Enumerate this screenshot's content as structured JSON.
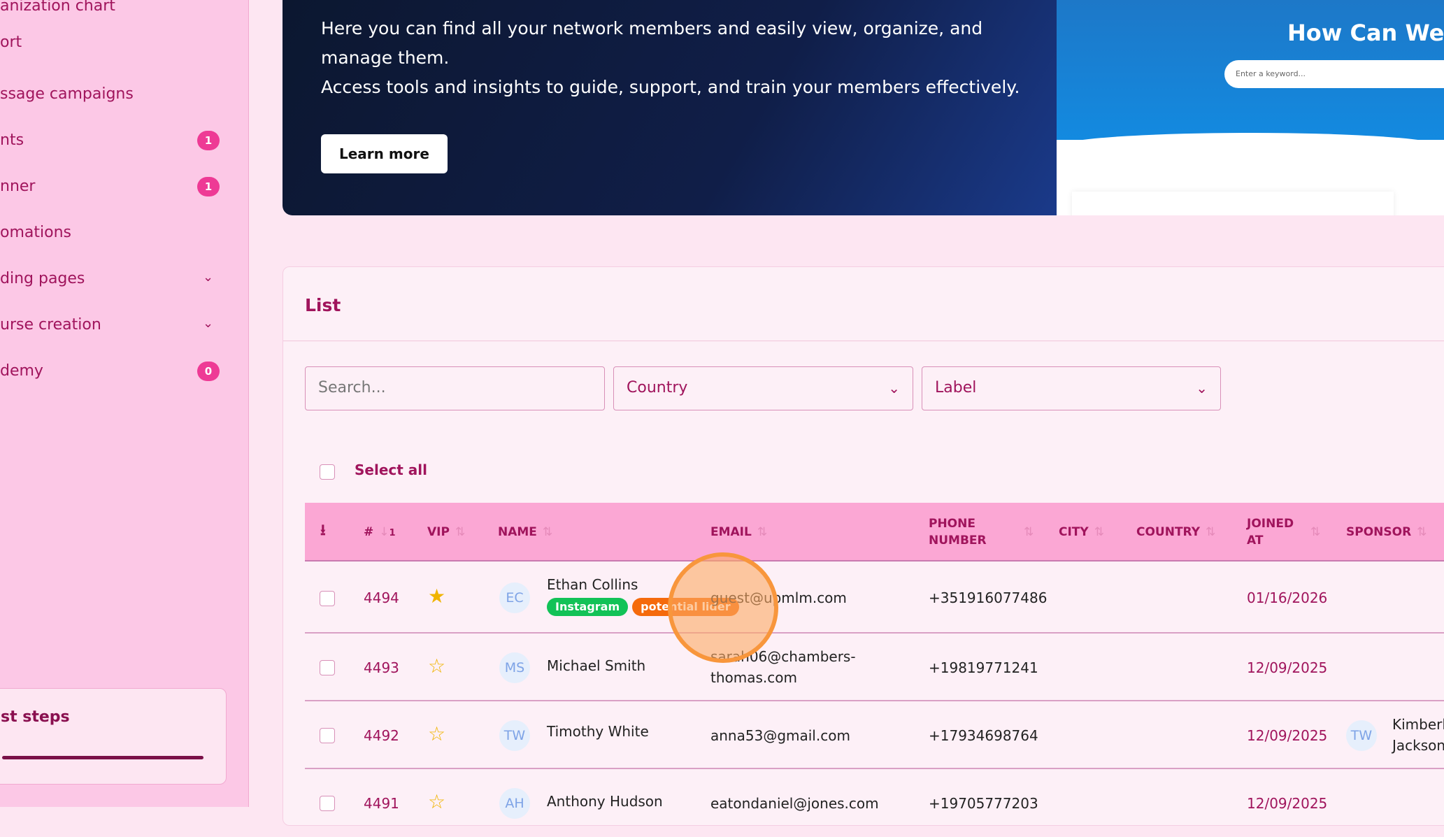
{
  "sidebar": {
    "items": [
      {
        "label": "anization chart"
      },
      {
        "label": "ort"
      },
      {
        "label": "ssage campaigns"
      },
      {
        "label": "nts",
        "badge": "1"
      },
      {
        "label": "nner",
        "badge": "1"
      },
      {
        "label": "omations"
      },
      {
        "label": "ding pages",
        "expandable": true
      },
      {
        "label": "urse creation",
        "expandable": true
      },
      {
        "label": "demy",
        "badge": "0"
      }
    ],
    "steps_title": "st steps",
    "steps_progress": 1.0
  },
  "banner": {
    "line1": "Here you can find all your network members and easily view, organize, and manage them.",
    "line2": "Access tools and insights to guide, support, and train your members effectively.",
    "button": "Learn more"
  },
  "help": {
    "title": "How Can We H",
    "placeholder": "Enter a keyword..."
  },
  "list": {
    "title": "List",
    "search_placeholder": "Search...",
    "country": "Country",
    "label": "Label",
    "select_all": "Select all",
    "columns": {
      "num": "#",
      "sort_num": "1",
      "vip": "VIP",
      "name": "NAME",
      "email": "EMAIL",
      "phone": "PHONE NUMBER",
      "city": "CITY",
      "country": "COUNTRY",
      "joined": "JOINED AT",
      "sponsor": "SPONSOR"
    },
    "rows": [
      {
        "id": "4494",
        "vip": true,
        "initials": "EC",
        "name": "Ethan Collins",
        "tags": [
          "Instagram",
          "potential lider"
        ],
        "email": "guest@upmlm.com",
        "phone": "+351916077486",
        "joined": "01/16/2026",
        "sponsor_initials": "",
        "sponsor": ""
      },
      {
        "id": "4493",
        "vip": false,
        "initials": "MS",
        "name": "Michael Smith",
        "email": "sarah06@chambers-thomas.com",
        "phone": "+19819771241",
        "joined": "12/09/2025",
        "sponsor_initials": "",
        "sponsor": ""
      },
      {
        "id": "4492",
        "vip": false,
        "initials": "TW",
        "name": "Timothy White",
        "email": "anna53@gmail.com",
        "phone": "+17934698764",
        "joined": "12/09/2025",
        "sponsor_initials": "TW",
        "sponsor": "Kimberly Jackson"
      },
      {
        "id": "4491",
        "vip": false,
        "initials": "AH",
        "name": "Anthony Hudson",
        "email": "eatondaniel@jones.com",
        "phone": "+19705777203",
        "joined": "12/09/2025",
        "sponsor_initials": "",
        "sponsor": ""
      }
    ]
  },
  "colors": {
    "accent": "#a0145c",
    "header": "#fba7d4",
    "badge": "#ee3a95",
    "tag_instagram": "#12c257",
    "tag_potential": "#f56a0c",
    "star": "#f0b400"
  }
}
